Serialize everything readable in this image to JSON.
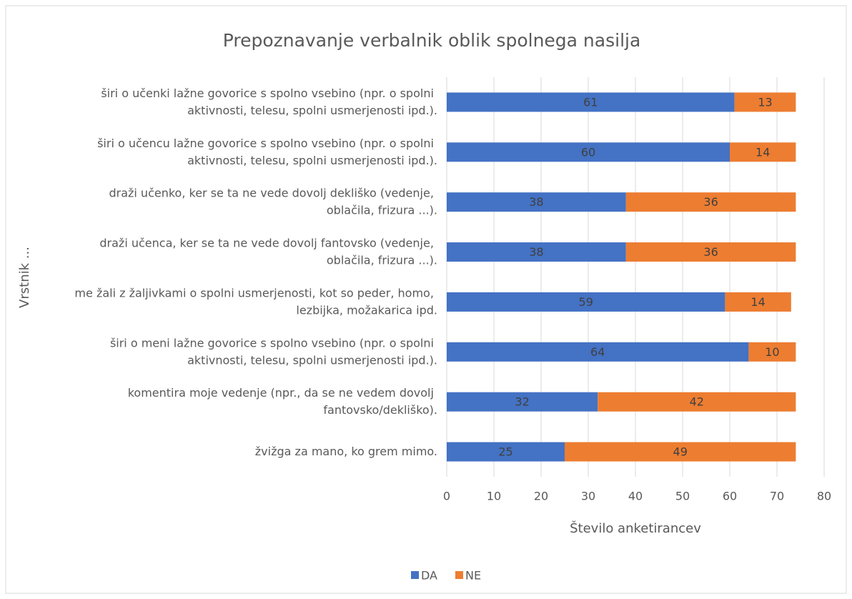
{
  "chart_data": {
    "type": "stacked_bar_horizontal",
    "title": "Prepoznavanje verbalnik oblik spolnega nasilja",
    "x_label": "Število anketirancev",
    "y_label": "Vrstnik ...",
    "categories": [
      "širi o učenki lažne govorice s spolno vsebino (npr. o spolni aktivnosti, telesu, spolni usmerjenosti ipd.).",
      "širi o učencu lažne govorice s spolno vsebino (npr. o spolni aktivnosti, telesu, spolni usmerjenosti ipd.).",
      "draži učenko, ker se ta ne vede dovolj dekliško (vedenje, oblačila, frizura ...).",
      "draži učenca, ker se ta ne vede dovolj fantovsko (vedenje, oblačila, frizura ...).",
      "me žali z žaljivkami o spolni usmerjenosti, kot so peder, homo, lezbijka, možakarica ipd.",
      "širi o meni lažne govorice s spolno vsebino (npr. o spolni aktivnosti, telesu, spolni usmerjenosti ipd.).",
      "komentira moje vedenje (npr., da se ne vedem dovolj fantovsko/dekliško).",
      "žvižga za mano, ko grem mimo."
    ],
    "series": [
      {
        "name": "DA",
        "color": "#4472c4",
        "values": [
          61,
          60,
          38,
          38,
          59,
          64,
          32,
          25
        ]
      },
      {
        "name": "NE",
        "color": "#ed7d31",
        "values": [
          13,
          14,
          36,
          36,
          14,
          10,
          42,
          49
        ]
      }
    ],
    "xlim": [
      0,
      80
    ],
    "xticks": [
      0,
      10,
      20,
      30,
      40,
      50,
      60,
      70,
      80
    ],
    "grid": true,
    "legend": "bottom"
  }
}
